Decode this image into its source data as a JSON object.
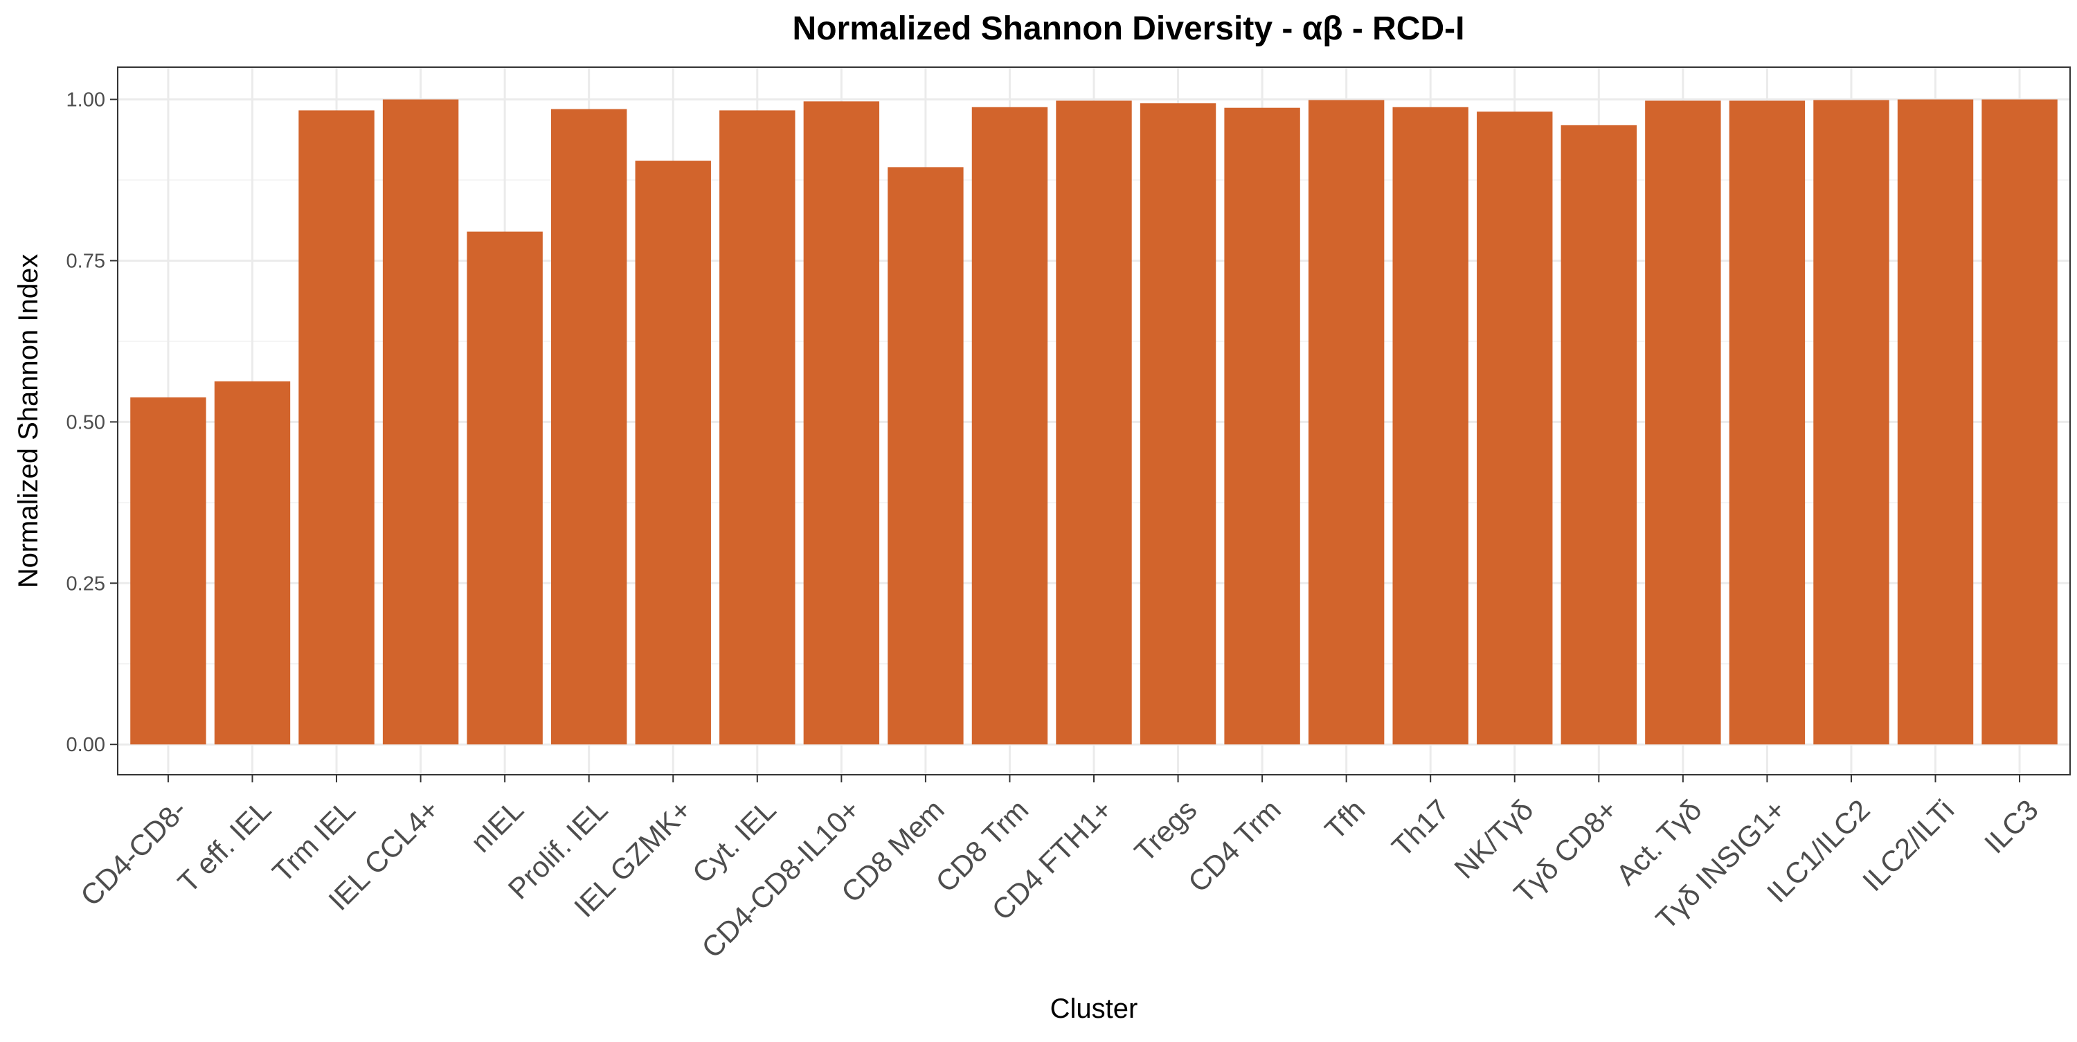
{
  "chart_data": {
    "type": "bar",
    "title": "Normalized Shannon Diversity - αβ - RCD-I",
    "xlabel": "Cluster",
    "ylabel": "Normalized Shannon Index",
    "ylim": [
      -0.047,
      1.05
    ],
    "yticks": [
      0.0,
      0.25,
      0.5,
      0.75,
      1.0
    ],
    "ytick_labels": [
      "0.00",
      "0.25",
      "0.50",
      "0.75",
      "1.00"
    ],
    "grid": true,
    "legend": "none",
    "bar_color": "#D2642C",
    "categories": [
      "CD4-CD8-",
      "T eff. IEL",
      "Trm IEL",
      "IEL CCL4+",
      "nIEL",
      "Prolif. IEL",
      "IEL GZMK+",
      "Cyt. IEL",
      "CD4-CD8-IL10+",
      "CD8 Mem",
      "CD8 Trm",
      "CD4 FTH1+",
      "Tregs",
      "CD4 Trm",
      "Tfh",
      "Th17",
      "NK/Tγδ",
      "Tγδ CD8+",
      "Act. Tγδ",
      "Tγδ INSIG1+",
      "ILC1/ILC2",
      "ILC2/ILTi",
      "ILC3"
    ],
    "values": [
      0.538,
      0.563,
      0.983,
      1.0,
      0.795,
      0.985,
      0.905,
      0.983,
      0.997,
      0.895,
      0.988,
      0.998,
      0.994,
      0.987,
      0.999,
      0.988,
      0.981,
      0.96,
      0.998,
      0.998,
      0.999,
      1.0,
      1.0
    ]
  }
}
